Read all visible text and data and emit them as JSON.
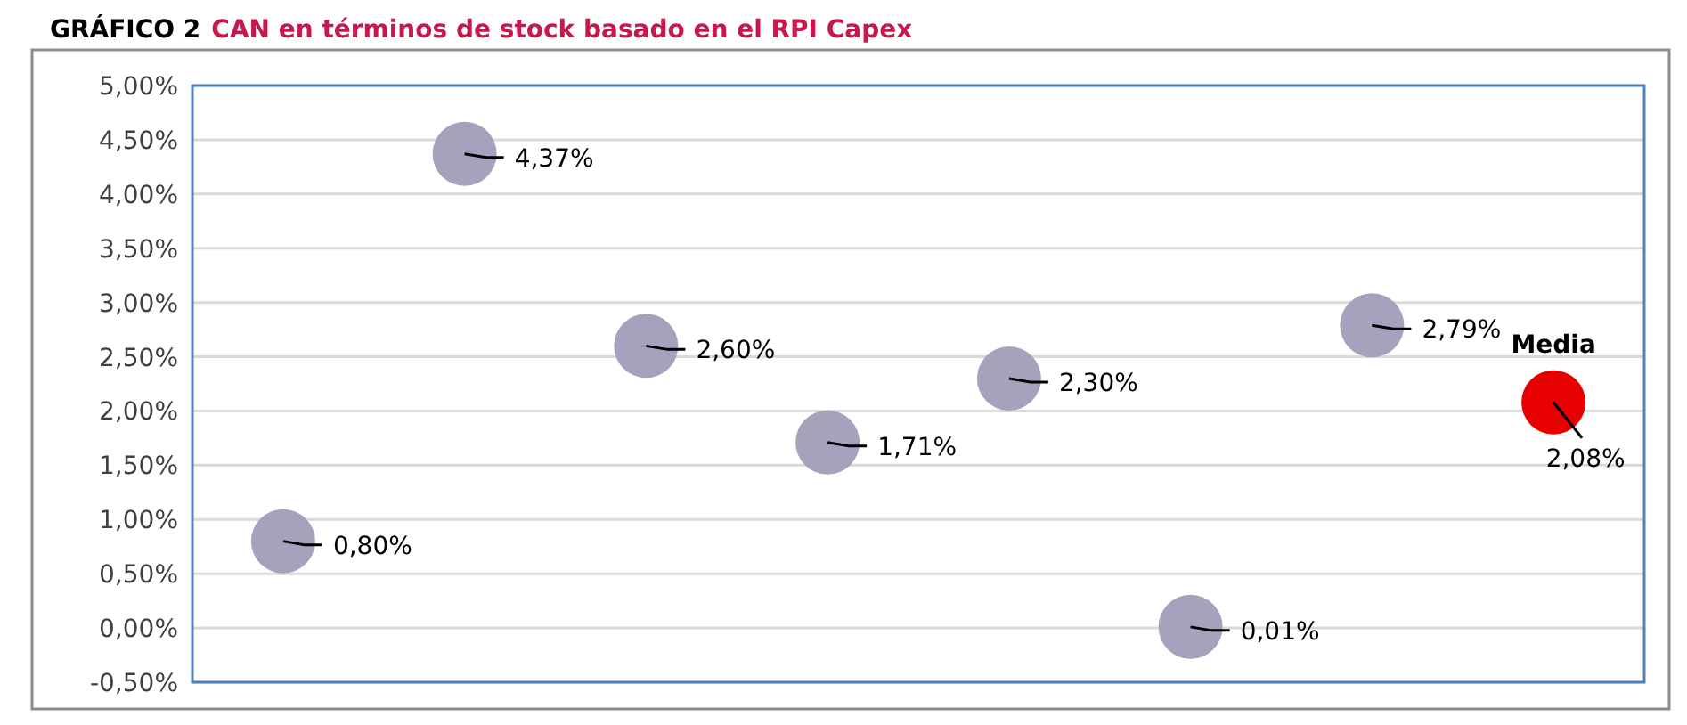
{
  "chart_data": {
    "type": "scatter",
    "title": "GRÁFICO 2",
    "subtitle": "CAN en términos de stock basado en el RPI Capex",
    "categories": [
      null,
      null,
      null,
      null,
      null,
      null,
      null,
      null
    ],
    "series": [
      {
        "color": "#a7a1bd",
        "values": [
          0.8,
          4.37,
          2.6,
          1.71,
          2.3,
          0.01,
          2.79,
          null
        ],
        "value_labels": [
          "0,80%",
          "4,37%",
          "2,60%",
          "1,71%",
          "2,30%",
          "0,01%",
          "2,79%",
          null
        ]
      },
      {
        "name": "Media",
        "color": "#e60000",
        "values": [
          null,
          null,
          null,
          null,
          null,
          null,
          null,
          2.08
        ],
        "value_labels": [
          null,
          null,
          null,
          null,
          null,
          null,
          null,
          "2,08%"
        ]
      }
    ],
    "ylim": [
      -0.5,
      5
    ],
    "yticks": [
      {
        "value": -0.5,
        "label": "-0,50%"
      },
      {
        "value": 0,
        "label": "0,00%"
      },
      {
        "value": 0.5,
        "label": "0,50%"
      },
      {
        "value": 1,
        "label": "1,00%"
      },
      {
        "value": 1.5,
        "label": "1,50%"
      },
      {
        "value": 2,
        "label": "2,00%"
      },
      {
        "value": 2.5,
        "label": "2,50%"
      },
      {
        "value": 3,
        "label": "3,00%"
      },
      {
        "value": 3.5,
        "label": "3,50%"
      },
      {
        "value": 4,
        "label": "4,00%"
      },
      {
        "value": 4.5,
        "label": "4,50%"
      },
      {
        "value": 5,
        "label": "5,00%"
      }
    ],
    "grid": "y",
    "marker": "circle",
    "tick_labels": "y"
  }
}
